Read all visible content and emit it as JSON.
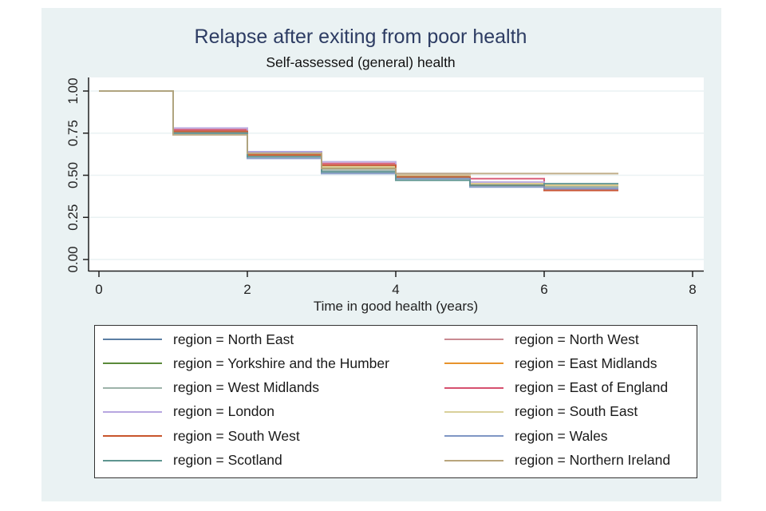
{
  "chart_data": {
    "type": "line",
    "subtype": "step",
    "title": "Relapse after exiting from poor health",
    "subtitle": "Self-assessed (general) health",
    "xlabel": "Time in good health (years)",
    "ylabel": "",
    "xlim": [
      0,
      8
    ],
    "ylim": [
      0,
      1
    ],
    "xticks": [
      "0",
      "2",
      "4",
      "6",
      "8"
    ],
    "xtick_values": [
      0,
      2,
      4,
      6,
      8
    ],
    "yticks": [
      "0.00",
      "0.25",
      "0.50",
      "0.75",
      "1.00"
    ],
    "ytick_values": [
      0,
      0.25,
      0.5,
      0.75,
      1.0
    ],
    "grid": true,
    "legend_position": "bottom",
    "x": [
      0,
      1,
      2,
      3,
      4,
      5,
      6,
      7
    ],
    "series": [
      {
        "name": "region = North East",
        "color": "#5b7ea3",
        "values": [
          1.0,
          0.76,
          0.64,
          0.52,
          0.49,
          0.45,
          0.43,
          0.43
        ]
      },
      {
        "name": "region = North West",
        "color": "#c98a92",
        "values": [
          1.0,
          0.77,
          0.62,
          0.56,
          0.5,
          0.44,
          0.42,
          0.42
        ]
      },
      {
        "name": "region = Yorkshire and the Humber",
        "color": "#5a8a3a",
        "values": [
          1.0,
          0.75,
          0.63,
          0.54,
          0.49,
          0.45,
          0.44,
          0.44
        ]
      },
      {
        "name": "region = East Midlands",
        "color": "#e8932c",
        "values": [
          1.0,
          0.76,
          0.62,
          0.55,
          0.5,
          0.45,
          0.44,
          0.44
        ]
      },
      {
        "name": "region = West Midlands",
        "color": "#9db3a9",
        "values": [
          1.0,
          0.76,
          0.61,
          0.53,
          0.48,
          0.44,
          0.43,
          0.43
        ]
      },
      {
        "name": "region = East of England",
        "color": "#d6506e",
        "values": [
          1.0,
          0.77,
          0.63,
          0.57,
          0.5,
          0.48,
          0.41,
          0.41
        ]
      },
      {
        "name": "region = London",
        "color": "#b7a6e0",
        "values": [
          1.0,
          0.78,
          0.64,
          0.58,
          0.51,
          0.46,
          0.42,
          0.42
        ]
      },
      {
        "name": "region = South East",
        "color": "#d9d09a",
        "values": [
          1.0,
          0.76,
          0.63,
          0.55,
          0.5,
          0.45,
          0.44,
          0.44
        ]
      },
      {
        "name": "region = South West",
        "color": "#c8552c",
        "values": [
          1.0,
          0.76,
          0.62,
          0.56,
          0.49,
          0.44,
          0.41,
          0.41
        ]
      },
      {
        "name": "region = Wales",
        "color": "#7f96c4",
        "values": [
          1.0,
          0.75,
          0.6,
          0.51,
          0.48,
          0.43,
          0.42,
          0.42
        ]
      },
      {
        "name": "region = Scotland",
        "color": "#5e9590",
        "values": [
          1.0,
          0.75,
          0.61,
          0.52,
          0.47,
          0.44,
          0.45,
          0.45
        ]
      },
      {
        "name": "region = Northern Ireland",
        "color": "#b9a57c",
        "values": [
          1.0,
          0.74,
          0.63,
          0.54,
          0.51,
          0.51,
          0.51,
          0.51
        ]
      }
    ]
  },
  "colors": {
    "panel_background": "#eaf2f3",
    "plot_background": "#ffffff",
    "title_color": "#2d3c63",
    "gridline": "#eaf2f3"
  }
}
